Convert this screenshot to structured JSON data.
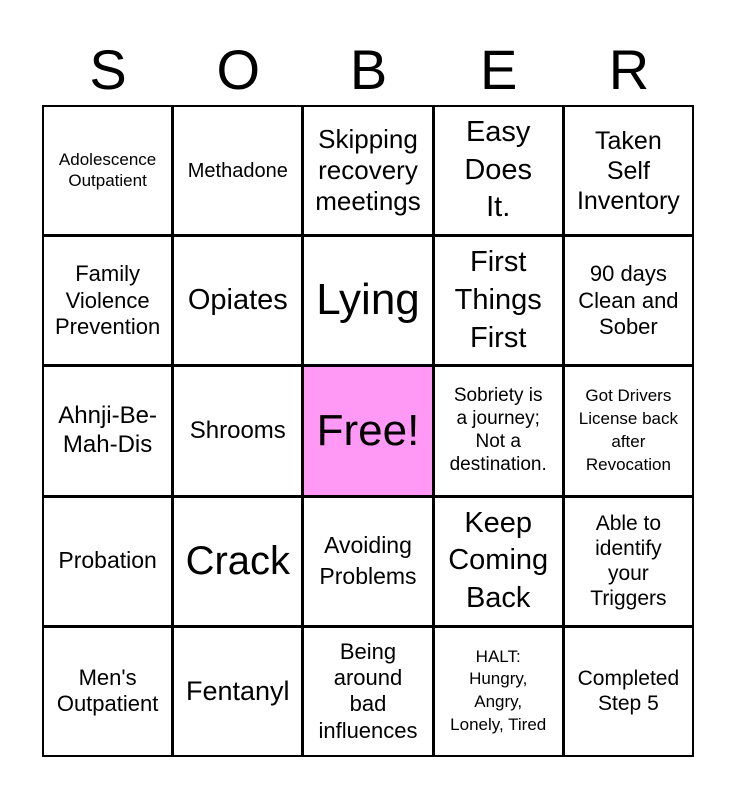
{
  "header": [
    "S",
    "O",
    "B",
    "E",
    "R"
  ],
  "free_color": "#ff99f5",
  "cells": [
    "Adolescence\nOutpatient",
    "Methadone",
    "Skipping\nrecovery\nmeetings",
    "Easy\nDoes\nIt.",
    "Taken\nSelf\nInventory",
    "Family\nViolence\nPrevention",
    "Opiates",
    "Lying",
    "First\nThings\nFirst",
    "90 days\nClean and\nSober",
    "Ahnji-Be-\nMah-Dis",
    "Shrooms",
    "Free!",
    "Sobriety is\na journey;\nNot a\ndestination.",
    "Got Drivers\nLicense back\nafter\nRevocation",
    "Probation",
    "Crack",
    "Avoiding\nProblems",
    "Keep\nComing\nBack",
    "Able to\nidentify\nyour\nTriggers",
    "Men's\nOutpatient",
    "Fentanyl",
    "Being\naround\nbad\ninfluences",
    "HALT:\nHungry,\nAngry,\nLonely, Tired",
    "Completed\nStep 5"
  ]
}
